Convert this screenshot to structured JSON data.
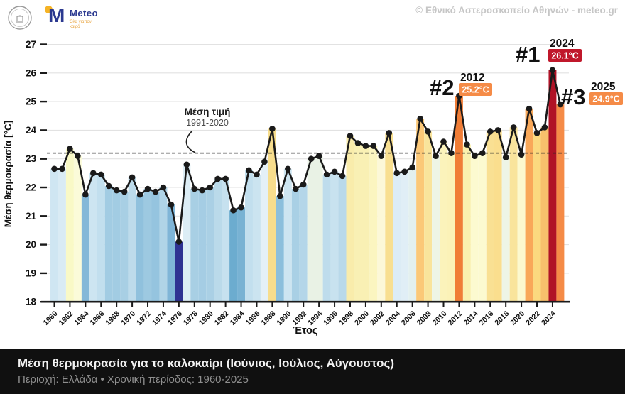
{
  "header": {
    "brand": {
      "m": "M",
      "name": "Meteo",
      "tagline": "Όλα για τον καιρό"
    },
    "copyright": "© Εθνικό Αστεροσκοπείο Αθηνών - meteo.gr"
  },
  "chart_data": {
    "type": "bar+line",
    "xlabel": "Έτος",
    "ylabel": "Μέση θερμοκρασία [°C]",
    "ylim": [
      18,
      27
    ],
    "ytick_step": 1,
    "xtick_step": 2,
    "grid": true,
    "mean_line": {
      "value": 23.2,
      "label": "Μέση τιμή",
      "period": "1991-2020"
    },
    "years": [
      1960,
      1961,
      1962,
      1963,
      1964,
      1965,
      1966,
      1967,
      1968,
      1969,
      1970,
      1971,
      1972,
      1973,
      1974,
      1975,
      1976,
      1977,
      1978,
      1979,
      1980,
      1981,
      1982,
      1983,
      1984,
      1985,
      1986,
      1987,
      1988,
      1989,
      1990,
      1991,
      1992,
      1993,
      1994,
      1995,
      1996,
      1997,
      1998,
      1999,
      2000,
      2001,
      2002,
      2003,
      2004,
      2005,
      2006,
      2007,
      2008,
      2009,
      2010,
      2011,
      2012,
      2013,
      2014,
      2015,
      2016,
      2017,
      2018,
      2019,
      2020,
      2021,
      2022,
      2023,
      2024,
      2025
    ],
    "values": [
      22.65,
      22.65,
      23.35,
      23.1,
      21.75,
      22.5,
      22.45,
      22.05,
      21.9,
      21.85,
      22.35,
      21.75,
      21.95,
      21.85,
      22.0,
      21.4,
      20.1,
      22.8,
      21.95,
      21.9,
      22.0,
      22.3,
      22.3,
      21.2,
      21.3,
      22.6,
      22.45,
      22.9,
      24.05,
      21.7,
      22.65,
      21.95,
      22.1,
      23.0,
      23.1,
      22.45,
      22.55,
      22.4,
      23.8,
      23.55,
      23.45,
      23.45,
      23.1,
      23.9,
      22.5,
      22.55,
      22.7,
      24.4,
      23.95,
      23.1,
      23.6,
      23.2,
      25.2,
      23.5,
      23.1,
      23.2,
      23.95,
      24.0,
      23.05,
      24.1,
      23.15,
      24.75,
      23.9,
      24.1,
      26.1,
      24.9
    ],
    "colors": [
      "#cfe6f2",
      "#d9ebf4",
      "#f9f9c6",
      "#fbfbd9",
      "#84b8d8",
      "#cde5f1",
      "#c2dfee",
      "#a2cce3",
      "#a2cce3",
      "#a8cfe4",
      "#bddbeb",
      "#90c1dd",
      "#9dc9e1",
      "#95c4df",
      "#b0d4e7",
      "#7fb5d7",
      "#2e3192",
      "#dcedf5",
      "#a8cfe4",
      "#a5cde4",
      "#aad0e5",
      "#badaea",
      "#c6e1ef",
      "#6caccf",
      "#78b2d3",
      "#c2dfee",
      "#cbe4f0",
      "#e4f0f7",
      "#f7dd8d",
      "#8cbfdc",
      "#cde5f1",
      "#a9d0e5",
      "#b4d6e9",
      "#e9f2e5",
      "#e9f2e5",
      "#bedcec",
      "#c8e2ef",
      "#b9d9ea",
      "#f9ecab",
      "#f9f0b4",
      "#f9f0b4",
      "#fbf5c0",
      "#fcf8d8",
      "#f8df90",
      "#dcecf5",
      "#e0eef6",
      "#e3f0ef",
      "#fbc878",
      "#f9e49c",
      "#eef5e6",
      "#fbf3bb",
      "#fbf2b8",
      "#f07d36",
      "#faf0ae",
      "#fcfad0",
      "#fcfad0",
      "#f9e093",
      "#fade8e",
      "#eef5e6",
      "#f9e49c",
      "#fcf9cf",
      "#f9a859",
      "#fbd97f",
      "#f8c06c",
      "#b01226",
      "#f58b47"
    ],
    "line_color": "#1a1a1a",
    "annotations": [
      {
        "rank": "#1",
        "year": 2024,
        "year_label": "2024",
        "temp_label": "26.1°C",
        "badge_color": "#c0182b"
      },
      {
        "rank": "#2",
        "year": 2012,
        "year_label": "2012",
        "temp_label": "25.2°C",
        "badge_color": "#f58b47"
      },
      {
        "rank": "#3",
        "year": 2025,
        "year_label": "2025",
        "temp_label": "24.9°C",
        "badge_color": "#f58b47"
      }
    ]
  },
  "footer": {
    "title": "Μέση θερμοκρασία για το καλοκαίρι (Ιούνιος, Ιούλιος, Αύγουστος)",
    "subtitle": "Περιοχή: Ελλάδα • Χρονική περίοδος: 1960-2025"
  }
}
